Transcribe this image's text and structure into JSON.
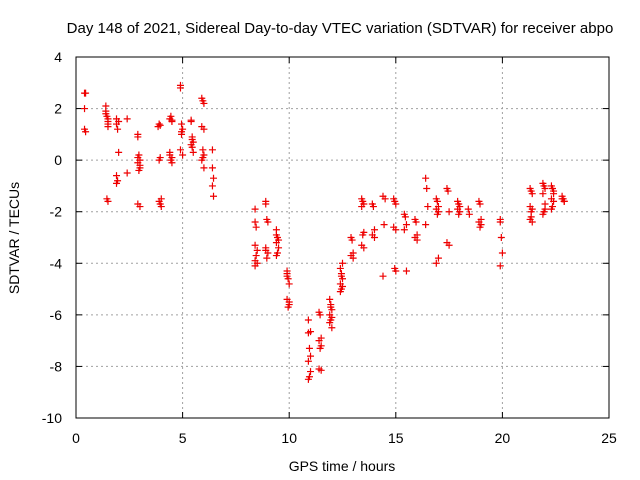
{
  "chart_data": {
    "type": "scatter",
    "title": "Day 148 of 2021, Sidereal Day-to-day VTEC variation (SDTVAR) for receiver abpo",
    "xlabel": "GPS time / hours",
    "ylabel": "SDTVAR / TECUs",
    "xlim": [
      0,
      25
    ],
    "ylim": [
      -10,
      4
    ],
    "xticks": [
      0,
      5,
      10,
      15,
      20,
      25
    ],
    "yticks": [
      -10,
      -8,
      -6,
      -4,
      -2,
      0,
      2,
      4
    ],
    "grid": true,
    "marker": "plus",
    "color": "#ee0000",
    "series": [
      {
        "name": "SDTVAR",
        "x": [
          0.4,
          0.4,
          0.4,
          0.45,
          0.45,
          1.4,
          1.4,
          1.45,
          1.5,
          1.5,
          1.5,
          1.45,
          1.5,
          1.4,
          1.5,
          1.9,
          1.9,
          1.95,
          2.0,
          1.9,
          1.95,
          1.9,
          2.0,
          2.4,
          2.4,
          2.9,
          2.9,
          2.95,
          3.0,
          2.9,
          3.0,
          2.95,
          2.9,
          3.0,
          2.9,
          3.0,
          3.85,
          3.9,
          3.9,
          3.95,
          4.0,
          3.95,
          4.0,
          3.9,
          3.95,
          4.4,
          4.45,
          4.5,
          4.4,
          4.5,
          4.45,
          4.5,
          4.4,
          4.5,
          4.9,
          4.9,
          4.95,
          5.0,
          4.95,
          4.9,
          5.0,
          4.95,
          5.4,
          5.45,
          5.5,
          5.4,
          5.45,
          5.5,
          5.45,
          5.4,
          5.9,
          5.95,
          6.0,
          5.9,
          6.0,
          5.95,
          6.0,
          5.9,
          6.0,
          5.95,
          6.4,
          6.4,
          6.45,
          6.4,
          6.45,
          8.4,
          8.4,
          8.45,
          8.4,
          8.5,
          8.45,
          8.4,
          8.5,
          8.4,
          8.9,
          8.9,
          8.95,
          9.0,
          8.9,
          9.0,
          8.95,
          8.9,
          9.4,
          9.4,
          9.45,
          9.5,
          9.4,
          9.5,
          9.45,
          9.4,
          9.9,
          9.9,
          9.95,
          10.0,
          9.9,
          10.0,
          9.95,
          9.9,
          10.0,
          10.9,
          10.9,
          10.95,
          11.0,
          10.9,
          11.0,
          10.95,
          10.9,
          11.0,
          11.4,
          11.45,
          11.5,
          11.4,
          11.5,
          11.45,
          11.4,
          11.5,
          11.9,
          11.95,
          12.0,
          11.9,
          12.0,
          11.95,
          11.9,
          12.0,
          11.95,
          12.4,
          12.45,
          12.5,
          12.4,
          12.5,
          12.45,
          12.4,
          12.5,
          12.45,
          12.9,
          12.95,
          13.0,
          12.9,
          13.0,
          13.4,
          13.45,
          13.5,
          13.4,
          13.5,
          13.45,
          13.4,
          13.5,
          13.9,
          13.95,
          14.0,
          13.9,
          14.0,
          14.4,
          14.5,
          14.45,
          14.4,
          14.9,
          14.95,
          15.0,
          14.9,
          15.0,
          14.95,
          15.0,
          15.4,
          15.45,
          15.5,
          15.4,
          15.5,
          15.9,
          15.95,
          16.0,
          15.9,
          16.0,
          16.4,
          16.45,
          16.5,
          16.4,
          16.9,
          16.95,
          17.0,
          16.9,
          17.0,
          16.95,
          17.0,
          16.9,
          17.4,
          17.45,
          17.5,
          17.4,
          17.5,
          17.9,
          17.95,
          18.0,
          17.9,
          18.0,
          17.95,
          18.4,
          18.45,
          18.9,
          18.95,
          19.0,
          18.9,
          19.0,
          18.95,
          19.9,
          19.9,
          19.95,
          20.0,
          19.9,
          21.3,
          21.35,
          21.4,
          21.3,
          21.4,
          21.35,
          21.3,
          21.4,
          21.35,
          21.9,
          21.95,
          22.0,
          21.9,
          22.0,
          21.95,
          21.9,
          22.0,
          22.3,
          22.35,
          22.4,
          22.3,
          22.4,
          22.35,
          22.3,
          22.4,
          22.8,
          22.85,
          22.9,
          22.8,
          22.9
        ],
        "y": [
          2.6,
          2.0,
          1.2,
          1.1,
          2.6,
          2.1,
          1.9,
          1.7,
          1.5,
          1.4,
          1.3,
          -1.5,
          -1.6,
          1.8,
          1.6,
          1.6,
          1.4,
          1.2,
          0.3,
          -0.6,
          -0.8,
          -0.9,
          1.5,
          1.6,
          -0.5,
          1.0,
          0.9,
          0.2,
          0.0,
          -0.1,
          -0.3,
          -0.4,
          -1.7,
          -1.8,
          0.1,
          -0.2,
          1.3,
          1.4,
          0.0,
          0.1,
          -1.5,
          -1.7,
          -1.8,
          -1.6,
          1.35,
          1.6,
          1.7,
          1.5,
          0.3,
          0.1,
          0.0,
          -0.1,
          0.2,
          1.55,
          2.9,
          2.8,
          1.4,
          1.2,
          1.1,
          0.4,
          0.2,
          1.0,
          1.5,
          0.9,
          0.7,
          0.6,
          0.5,
          0.3,
          0.8,
          1.55,
          2.4,
          2.3,
          2.2,
          1.3,
          1.2,
          0.4,
          0.2,
          0.0,
          -0.3,
          0.1,
          0.4,
          -0.3,
          -0.7,
          -1.0,
          -1.4,
          -1.9,
          -2.4,
          -2.6,
          -3.3,
          -3.5,
          -3.7,
          -3.9,
          -4.0,
          -4.1,
          -1.6,
          -1.7,
          -2.3,
          -2.4,
          -3.4,
          -3.6,
          -3.8,
          -3.5,
          -2.7,
          -2.9,
          -3.0,
          -3.1,
          -3.2,
          -3.4,
          -3.6,
          -3.7,
          -4.3,
          -4.4,
          -4.6,
          -4.8,
          -5.4,
          -5.6,
          -5.7,
          -4.5,
          -5.5,
          -6.2,
          -6.7,
          -7.3,
          -7.6,
          -7.8,
          -8.2,
          -8.4,
          -8.5,
          -6.65,
          -5.9,
          -6.0,
          -6.9,
          -7.0,
          -7.2,
          -7.3,
          -8.1,
          -8.15,
          -5.4,
          -5.6,
          -5.8,
          -6.0,
          -6.1,
          -6.2,
          -6.3,
          -6.5,
          -5.7,
          -4.2,
          -4.4,
          -4.6,
          -4.8,
          -4.9,
          -5.0,
          -5.1,
          -4.0,
          -4.5,
          -3.0,
          -3.1,
          -3.6,
          -3.7,
          -3.8,
          -1.5,
          -1.6,
          -1.7,
          -1.8,
          -2.8,
          -2.9,
          -3.3,
          -3.4,
          -1.7,
          -1.8,
          -2.7,
          -2.9,
          -3.0,
          -1.4,
          -1.5,
          -2.5,
          -4.5,
          -1.5,
          -1.6,
          -1.7,
          -2.6,
          -2.7,
          -4.2,
          -4.3,
          -2.1,
          -2.2,
          -2.5,
          -2.7,
          -4.3,
          -2.3,
          -2.4,
          -2.9,
          -3.0,
          -3.1,
          -0.7,
          -1.1,
          -1.8,
          -2.5,
          -1.5,
          -1.6,
          -1.8,
          -1.9,
          -2.0,
          -2.1,
          -3.8,
          -4.0,
          -1.1,
          -1.2,
          -2.0,
          -3.2,
          -3.3,
          -1.6,
          -1.7,
          -1.8,
          -1.9,
          -2.0,
          -2.1,
          -1.9,
          -2.1,
          -1.6,
          -1.7,
          -2.3,
          -2.4,
          -2.5,
          -2.6,
          -2.3,
          -2.4,
          -3.0,
          -3.6,
          -4.1,
          -1.1,
          -1.2,
          -1.3,
          -1.8,
          -1.9,
          -2.2,
          -2.3,
          -2.4,
          -2.0,
          -0.9,
          -1.0,
          -1.1,
          -1.3,
          -1.9,
          -2.0,
          -2.1,
          -1.7,
          -1.0,
          -1.1,
          -1.3,
          -1.5,
          -1.6,
          -1.8,
          -1.9,
          -1.2,
          -1.4,
          -1.5,
          -1.6,
          -1.5,
          -1.6
        ]
      }
    ]
  }
}
